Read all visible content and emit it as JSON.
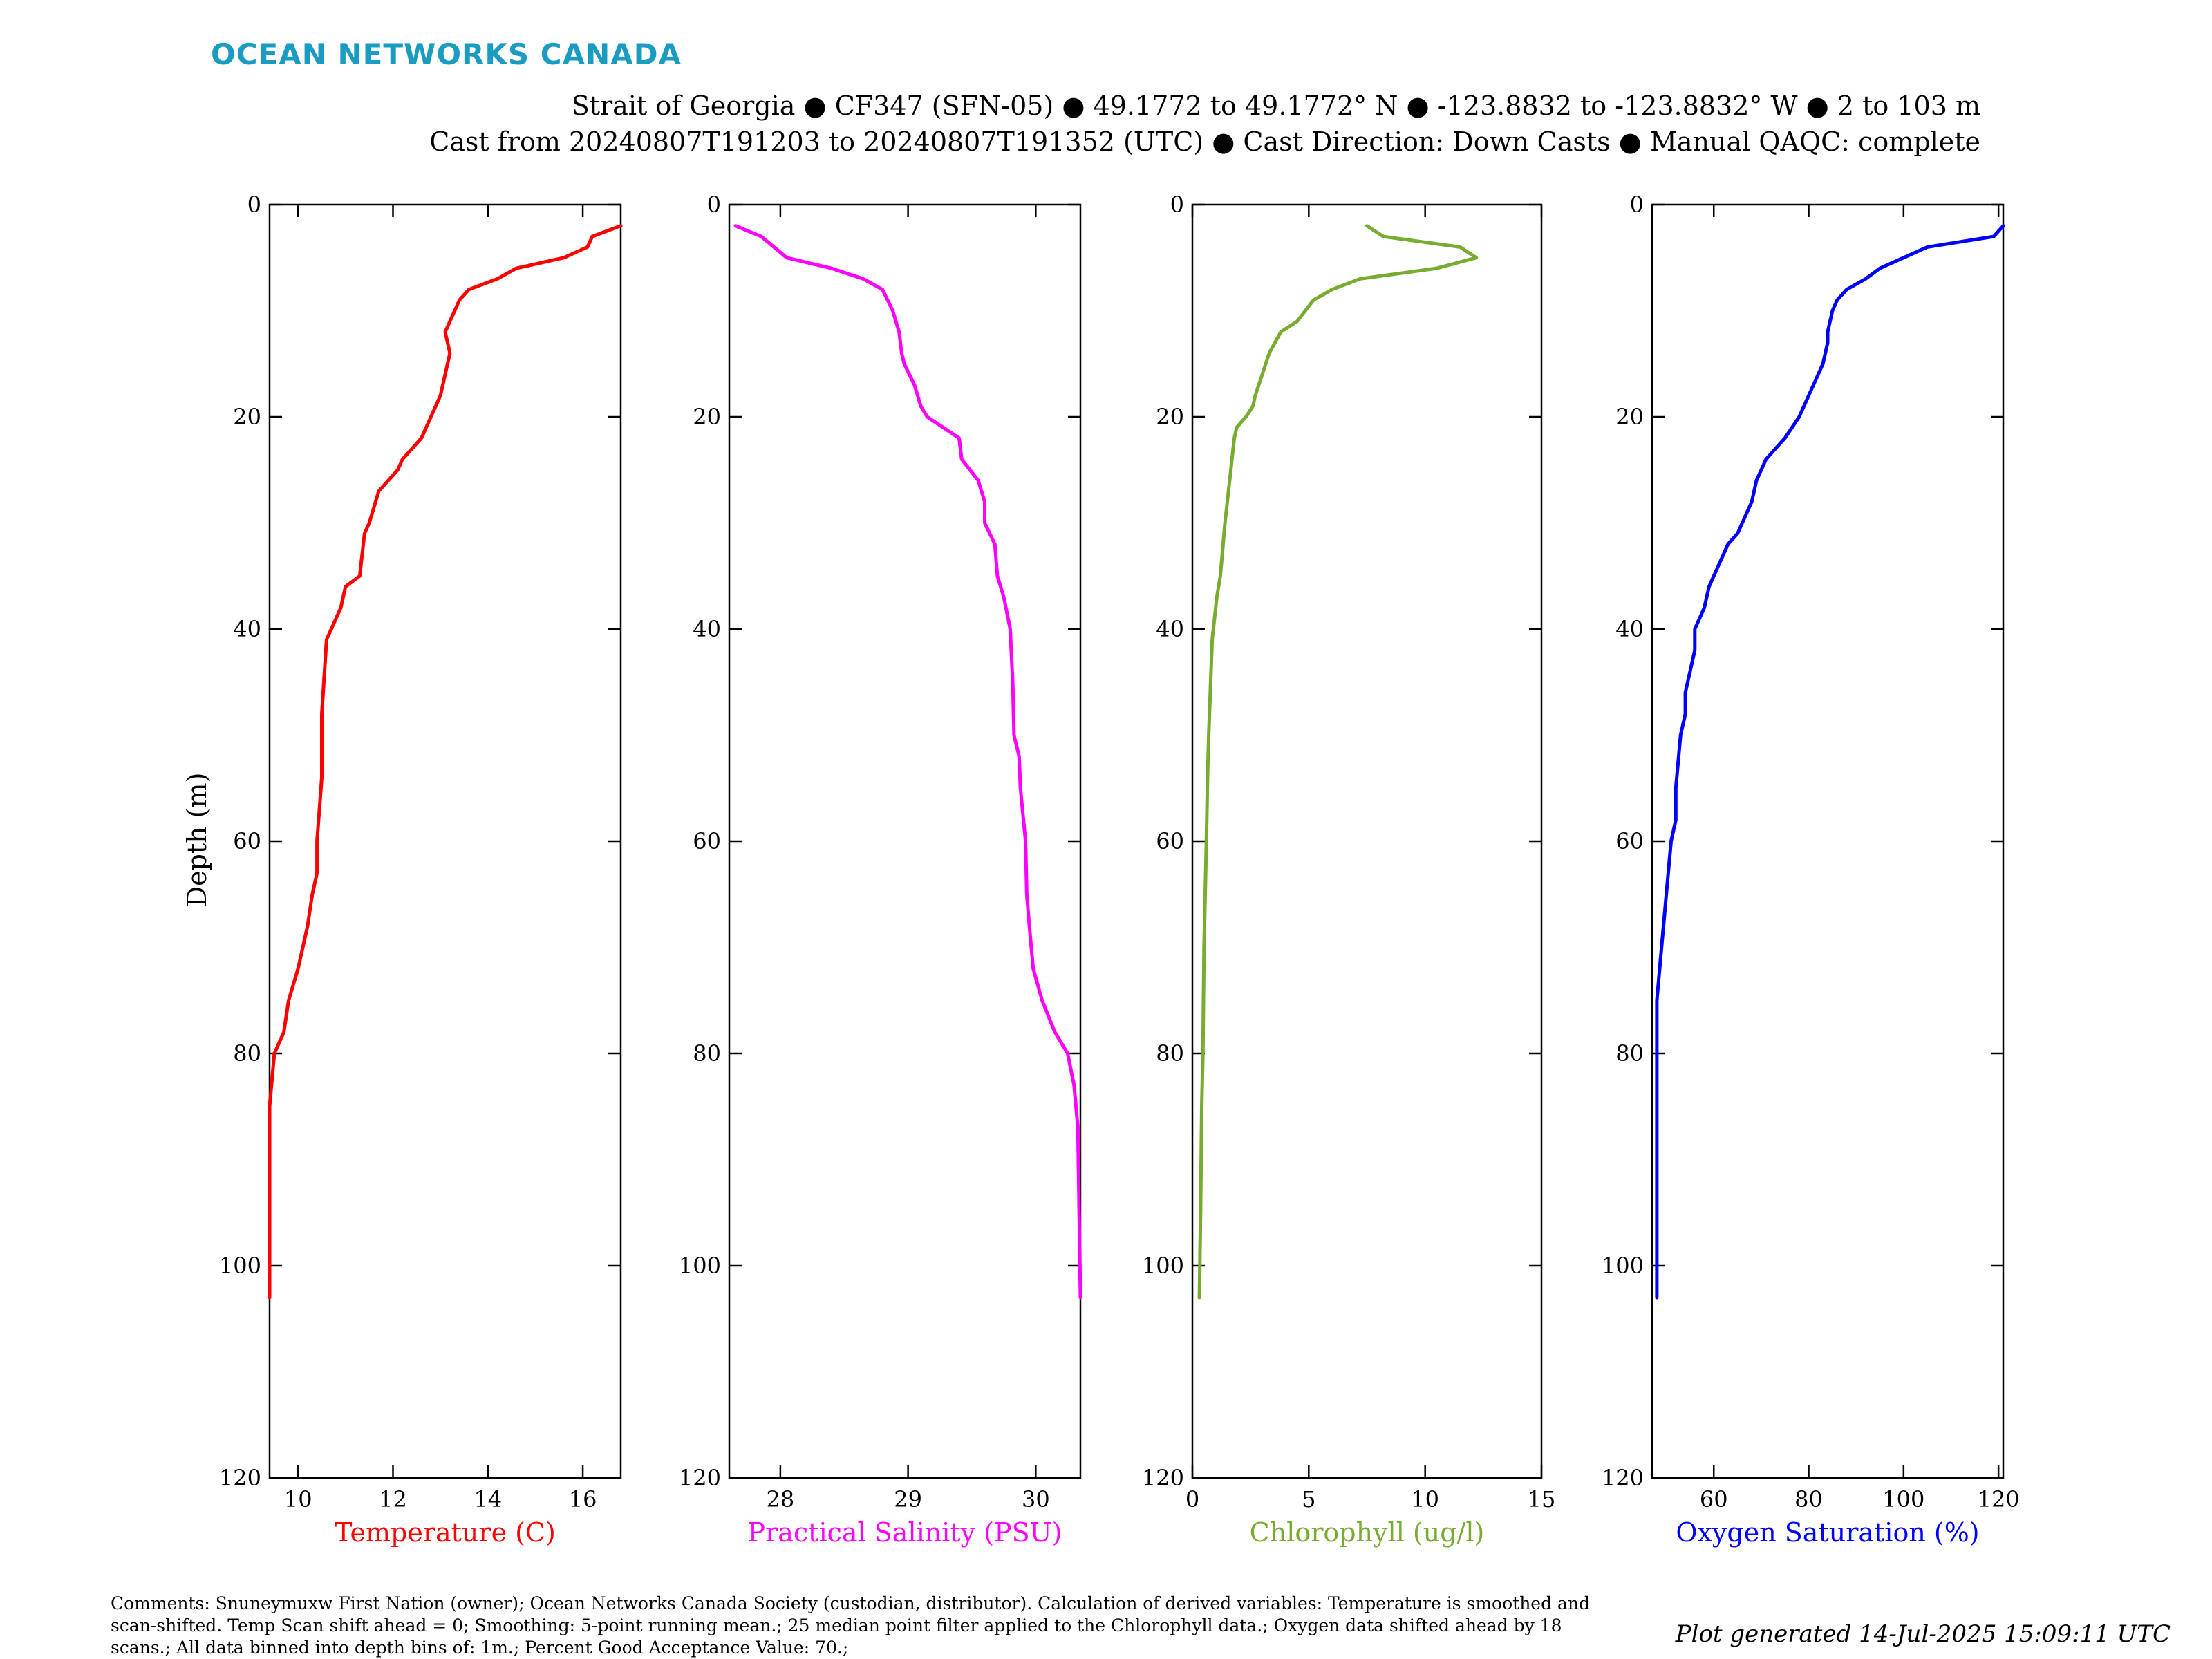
{
  "header": {
    "brand": "OCEAN NETWORKS CANADA",
    "line1": "Strait of Georgia ● CF347 (SFN-05) ● 49.1772 to 49.1772° N ● -123.8832 to -123.8832° W ● 2 to 103 m",
    "line2": "Cast from 20240807T191203 to 20240807T191352 (UTC) ● Cast Direction: Down Casts ● Manual QAQC: complete"
  },
  "footer": {
    "comment_lines": [
      "Comments: Snuneymuxw First Nation (owner); Ocean Networks Canada Society (custodian, distributor). Calculation of derived variables: Temperature is smoothed and",
      "scan-shifted. Temp Scan shift ahead = 0; Smoothing: 5-point running mean.; 25 median point filter applied to the Chlorophyll data.; Oxygen data shifted ahead by 18",
      "scans.; All data binned into depth bins of: 1m.; Percent Good Acceptance Value: 70.;"
    ],
    "generated": "Plot generated 14-Jul-2025 15:09:11 UTC"
  },
  "chart_data": [
    {
      "type": "line",
      "xlabel": "Temperature (C)",
      "ylabel": "Depth (m)",
      "color": "#ff0000",
      "xlim": [
        9.4,
        16.8
      ],
      "xticks": [
        10,
        12,
        14,
        16
      ],
      "ylim": [
        0,
        120
      ],
      "yticks": [
        0,
        20,
        40,
        60,
        80,
        100,
        120
      ],
      "y_reversed": true,
      "x": [
        16.8,
        16.2,
        16.1,
        15.6,
        14.6,
        14.2,
        13.6,
        13.4,
        13.2,
        13.1,
        13.2,
        13.0,
        12.8,
        12.6,
        12.2,
        12.1,
        11.7,
        11.5,
        11.4,
        11.3,
        11.0,
        10.9,
        10.6,
        10.5,
        10.5,
        10.4,
        10.4,
        10.3,
        10.2,
        10.0,
        9.8,
        9.7,
        9.5,
        9.4,
        9.4,
        9.4
      ],
      "y": [
        2,
        3,
        4,
        5,
        6,
        7,
        8,
        9,
        11,
        12,
        14,
        18,
        20,
        22,
        24,
        25,
        27,
        30,
        31,
        35,
        36,
        38,
        41,
        48,
        54,
        60,
        63,
        65,
        68,
        72,
        75,
        78,
        80,
        85,
        95,
        103
      ]
    },
    {
      "type": "line",
      "xlabel": "Practical Salinity (PSU)",
      "ylabel": "",
      "color": "#ff00ff",
      "xlim": [
        27.6,
        30.35
      ],
      "xticks": [
        28,
        29,
        30
      ],
      "ylim": [
        0,
        120
      ],
      "yticks": [
        0,
        20,
        40,
        60,
        80,
        100,
        120
      ],
      "y_reversed": true,
      "x": [
        27.65,
        27.85,
        27.95,
        28.05,
        28.4,
        28.65,
        28.8,
        28.88,
        28.93,
        28.95,
        28.97,
        29.05,
        29.1,
        29.15,
        29.4,
        29.42,
        29.55,
        29.6,
        29.6,
        29.68,
        29.7,
        29.75,
        29.8,
        29.82,
        29.83,
        29.87,
        29.88,
        29.92,
        29.93,
        29.95,
        29.98,
        30.05,
        30.15,
        30.25,
        30.3,
        30.33,
        30.35
      ],
      "y": [
        2,
        3,
        4,
        5,
        6,
        7,
        8,
        10,
        12,
        14,
        15,
        17,
        19,
        20,
        22,
        24,
        26,
        28,
        30,
        32,
        35,
        37,
        40,
        45,
        50,
        52,
        55,
        60,
        65,
        68,
        72,
        75,
        78,
        80,
        83,
        87,
        103
      ]
    },
    {
      "type": "line",
      "xlabel": "Chlorophyll (ug/l)",
      "ylabel": "",
      "color": "#77ac30",
      "xlim": [
        0,
        15
      ],
      "xticks": [
        0,
        5,
        10,
        15
      ],
      "ylim": [
        0,
        120
      ],
      "yticks": [
        0,
        20,
        40,
        60,
        80,
        100,
        120
      ],
      "y_reversed": true,
      "x": [
        7.5,
        8.2,
        11.5,
        12.2,
        10.5,
        7.2,
        6.0,
        5.2,
        4.5,
        3.8,
        3.3,
        3.0,
        2.7,
        2.6,
        2.3,
        1.9,
        1.8,
        1.7,
        1.6,
        1.4,
        1.2,
        1.05,
        0.85,
        0.7,
        0.65,
        0.6,
        0.5,
        0.45,
        0.4,
        0.35,
        0.3
      ],
      "y": [
        2,
        3,
        4,
        5,
        6,
        7,
        8,
        9,
        11,
        12,
        14,
        16,
        18,
        19,
        20,
        21,
        22,
        24,
        26,
        30,
        35,
        37,
        41,
        50,
        54,
        60,
        70,
        80,
        85,
        95,
        103
      ]
    },
    {
      "type": "line",
      "xlabel": "Oxygen Saturation (%)",
      "ylabel": "",
      "color": "#0000ff",
      "xlim": [
        47,
        121
      ],
      "xticks": [
        60,
        80,
        100,
        120
      ],
      "ylim": [
        0,
        120
      ],
      "yticks": [
        0,
        20,
        40,
        60,
        80,
        100,
        120
      ],
      "y_reversed": true,
      "x": [
        121,
        120,
        119,
        105,
        100,
        95,
        92,
        88,
        86,
        85,
        84,
        84,
        83,
        82,
        81,
        80,
        78,
        75,
        73,
        71,
        70,
        69,
        68,
        67,
        65,
        63,
        62,
        61,
        60,
        59,
        58,
        56,
        56,
        55,
        54,
        54,
        53,
        52,
        52,
        51,
        50,
        49,
        48,
        48,
        48,
        48
      ],
      "y": [
        2,
        2.5,
        3,
        4,
        5,
        6,
        7,
        8,
        9,
        10,
        12,
        13,
        15,
        16,
        17,
        18,
        20,
        22,
        23,
        24,
        25,
        26,
        28,
        29,
        31,
        32,
        33,
        34,
        35,
        36,
        38,
        40,
        42,
        44,
        46,
        48,
        50,
        55,
        58,
        60,
        65,
        70,
        75,
        80,
        85,
        103
      ]
    }
  ]
}
